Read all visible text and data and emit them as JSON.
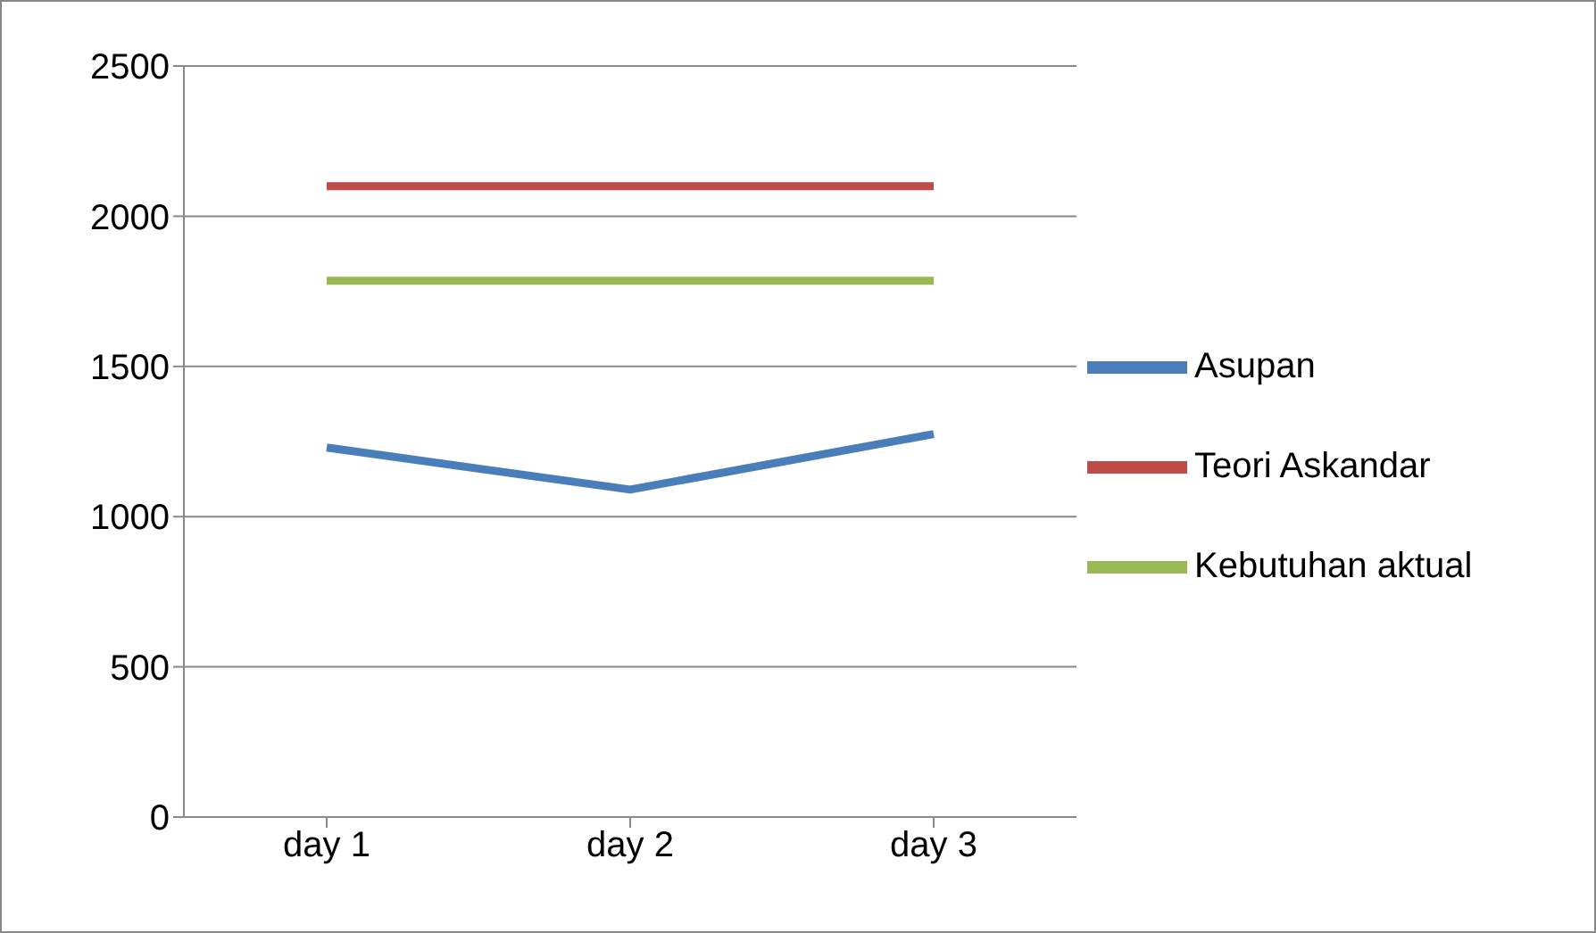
{
  "chart_data": {
    "type": "line",
    "categories": [
      "day 1",
      "day 2",
      "day 3"
    ],
    "series": [
      {
        "name": "Asupan",
        "color": "#4a7ebb",
        "values": [
          1230,
          1090,
          1275
        ]
      },
      {
        "name": "Teori Askandar",
        "color": "#be4b48",
        "values": [
          2100,
          2100,
          2100
        ]
      },
      {
        "name": "Kebutuhan aktual",
        "color": "#98b954",
        "values": [
          1785,
          1785,
          1785
        ]
      }
    ],
    "ylim": [
      0,
      2500
    ],
    "yticks": [
      0,
      500,
      1000,
      1500,
      2000,
      2500
    ],
    "grid": "y",
    "legend": "right",
    "marker": "none",
    "line_style": "solid"
  }
}
